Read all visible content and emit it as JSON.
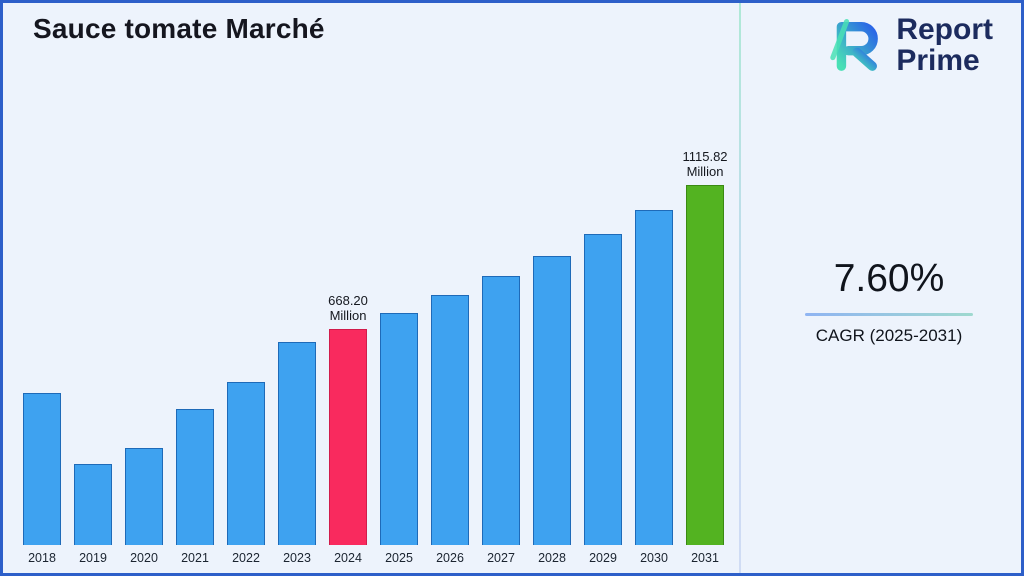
{
  "page": {
    "title": "Sauce tomate Marché"
  },
  "logo": {
    "line1": "Report",
    "line2": "Prime",
    "mark": "report-prime-monogram",
    "text_color": "#1c2b5e",
    "gradient_start": "#49e0b5",
    "gradient_end": "#2a63e8"
  },
  "stats": {
    "cagr_value": "7.60%",
    "cagr_label": "CAGR (2025-2031)"
  },
  "chart_data": {
    "type": "bar",
    "title": "Sauce tomate Marché",
    "xlabel": "",
    "ylabel": "",
    "ylim": [
      0,
      1160
    ],
    "grid": false,
    "axes_visible": false,
    "legend": "none",
    "categories": [
      "2018",
      "2019",
      "2020",
      "2021",
      "2022",
      "2023",
      "2024",
      "2025",
      "2026",
      "2027",
      "2028",
      "2029",
      "2030",
      "2031"
    ],
    "values": [
      470,
      250,
      300,
      420,
      505,
      630,
      668.2,
      719.0,
      773.6,
      832.4,
      895.7,
      963.7,
      1036.9,
      1115.82
    ],
    "annotations": [
      {
        "category": "2024",
        "value_label": "668.20",
        "unit_label": "Million"
      },
      {
        "category": "2031",
        "value_label": "1115.82",
        "unit_label": "Million"
      }
    ],
    "colors": {
      "default_fill": "#3ea2f0",
      "default_border": "#1e6ab8",
      "by_category": {
        "2024": {
          "fill": "#f92a5e",
          "border": "#d11c4b"
        },
        "2031": {
          "fill": "#53b321",
          "border": "#3a8a12"
        }
      }
    }
  }
}
